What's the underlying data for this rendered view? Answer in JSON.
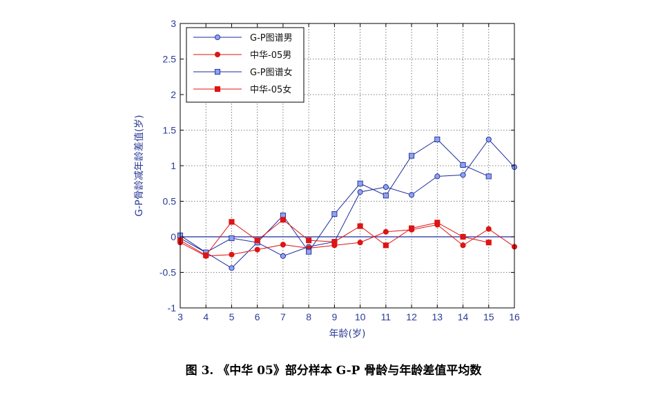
{
  "caption": "图 3. 《中华 05》部分样本 G-P 骨龄与年龄差值平均数",
  "chart_data": {
    "type": "line",
    "title": "",
    "xlabel": "年龄(岁)",
    "ylabel": "G-P骨龄减年龄差值(岁)",
    "xlim": [
      3,
      16
    ],
    "ylim": [
      -1,
      3
    ],
    "xticks": [
      "3",
      "4",
      "5",
      "6",
      "7",
      "8",
      "9",
      "10",
      "11",
      "12",
      "13",
      "14",
      "15",
      "16"
    ],
    "yticks": [
      "3",
      "2.5",
      "2",
      "1.5",
      "1",
      "0.5",
      "0",
      "-0.5",
      "-1"
    ],
    "grid": true,
    "legend_position": "top-left",
    "reference_line": 0,
    "colors": {
      "blue": "#1a2a9a",
      "red": "#e01010",
      "blue_fill": "#8fa2ee",
      "red_fill": "#dd1515",
      "axis": "#2a3a96"
    },
    "series": [
      {
        "name": "G-P图谱男",
        "marker": "circle",
        "color": "blue",
        "x": [
          3,
          4,
          5,
          6,
          7,
          8,
          9,
          10,
          11,
          12,
          13,
          14,
          15,
          16
        ],
        "y": [
          -0.02,
          -0.22,
          -0.44,
          -0.08,
          -0.27,
          -0.14,
          -0.07,
          0.63,
          0.7,
          0.59,
          0.85,
          0.87,
          1.37,
          0.98
        ]
      },
      {
        "name": "中华-05男",
        "marker": "circle",
        "color": "red",
        "x": [
          3,
          4,
          5,
          6,
          7,
          8,
          9,
          10,
          11,
          12,
          13,
          14,
          15,
          16
        ],
        "y": [
          -0.08,
          -0.27,
          -0.25,
          -0.18,
          -0.11,
          -0.16,
          -0.12,
          -0.08,
          0.07,
          0.1,
          0.17,
          -0.12,
          0.11,
          -0.14
        ]
      },
      {
        "name": "G-P图谱女",
        "marker": "square",
        "color": "blue",
        "x": [
          3,
          4,
          5,
          6,
          7,
          8,
          9,
          10,
          11,
          12,
          13,
          14,
          15
        ],
        "y": [
          0.02,
          -0.22,
          -0.02,
          -0.08,
          0.3,
          -0.21,
          0.32,
          0.75,
          0.58,
          1.14,
          1.37,
          1.01,
          0.85
        ]
      },
      {
        "name": "中华-05女",
        "marker": "square",
        "color": "red",
        "x": [
          3,
          4,
          5,
          6,
          7,
          8,
          9,
          10,
          11,
          12,
          13,
          14,
          15
        ],
        "y": [
          -0.05,
          -0.26,
          0.21,
          -0.05,
          0.24,
          -0.05,
          -0.07,
          0.15,
          -0.12,
          0.12,
          0.2,
          0.0,
          -0.08
        ]
      }
    ]
  }
}
